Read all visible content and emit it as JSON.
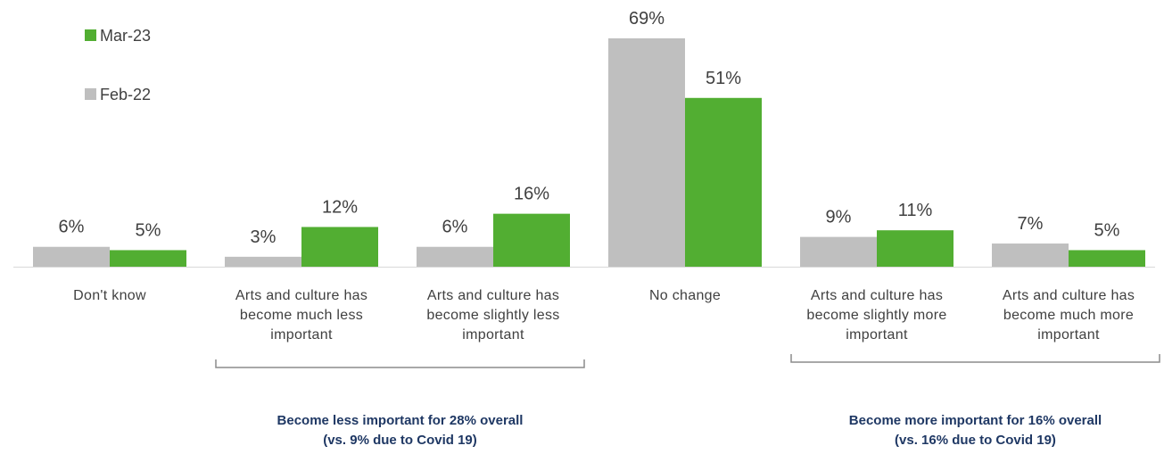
{
  "chart_data": {
    "type": "bar",
    "categories": [
      "Don't know",
      "Arts and culture has become much less important",
      "Arts and culture has become slightly less important",
      "No change",
      "Arts and culture has become slightly more important",
      "Arts and culture has become much more important"
    ],
    "category_lines": [
      [
        "Don't know"
      ],
      [
        "Arts and culture has",
        "become much less",
        "important"
      ],
      [
        "Arts and culture has",
        "become slightly less",
        "important"
      ],
      [
        "No change"
      ],
      [
        "Arts and culture has",
        "become slightly more",
        "important"
      ],
      [
        "Arts and culture has",
        "become much more",
        "important"
      ]
    ],
    "series": [
      {
        "name": "Feb-22",
        "color": "#bfbfbf",
        "values": [
          6,
          3,
          6,
          69,
          9,
          7
        ]
      },
      {
        "name": "Mar-23",
        "color": "#52ae32",
        "values": [
          5,
          12,
          16,
          51,
          11,
          5
        ]
      }
    ],
    "value_format": "%",
    "ylim": [
      0,
      75
    ],
    "grid": false,
    "legend": {
      "placement": "top-left",
      "order": [
        "Mar-23",
        "Feb-22"
      ]
    },
    "title": "",
    "xlabel": "",
    "ylabel": "",
    "annotations": [
      {
        "lines": [
          "Become less important for 28% overall",
          "(vs. 9% due to Covid 19)"
        ],
        "spans": [
          1,
          2
        ]
      },
      {
        "lines": [
          "Become more important for 16% overall",
          "(vs. 16% due to Covid 19)"
        ],
        "spans": [
          4,
          5
        ]
      }
    ]
  }
}
